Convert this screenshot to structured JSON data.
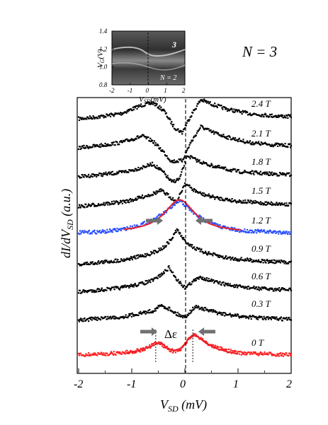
{
  "figure": {
    "ylabel": "dI/dV_SD (a.u.)",
    "ylabel_main": "dI/dV",
    "ylabel_sub": "SD",
    "ylabel_unit": " (a.u.)",
    "xlabel_main": "V",
    "xlabel_sub": "SD",
    "xlabel_unit": " (mV)",
    "state_label": "N = 3",
    "delta_label": "Δε"
  },
  "chart_data": [
    {
      "type": "scatter",
      "title": "",
      "xlabel": "V_SD (mV)",
      "ylabel": "dI/dV_SD (a.u.)",
      "xlim": [
        -2,
        2
      ],
      "xticks": [
        "-2",
        "-1",
        "0",
        "1",
        "2"
      ],
      "y_units": "arbitrary, traces offset vertically",
      "dashed_vertical_line_x": -0.05,
      "series": [
        {
          "name": "2.4 T",
          "color": "#000000",
          "baseline": 0.0,
          "x": [
            -2.0,
            -1.6,
            -1.2,
            -1.0,
            -0.8,
            -0.6,
            -0.4,
            -0.2,
            -0.05,
            0.1,
            0.3,
            0.5,
            0.8,
            1.2,
            1.6,
            2.0
          ],
          "y": [
            0.0,
            0.02,
            0.05,
            0.09,
            0.13,
            0.15,
            0.08,
            -0.08,
            -0.13,
            0.02,
            0.18,
            0.14,
            0.09,
            0.05,
            0.03,
            0.02
          ]
        },
        {
          "name": "2.1 T",
          "color": "#000000",
          "baseline": 0.0,
          "x": [
            -2.0,
            -1.6,
            -1.2,
            -1.0,
            -0.8,
            -0.6,
            -0.4,
            -0.25,
            -0.05,
            0.1,
            0.3,
            0.5,
            0.8,
            1.2,
            1.6,
            2.0
          ],
          "y": [
            0.0,
            0.02,
            0.05,
            0.08,
            0.11,
            0.06,
            -0.04,
            -0.13,
            -0.12,
            0.04,
            0.2,
            0.15,
            0.1,
            0.05,
            0.03,
            0.02
          ]
        },
        {
          "name": "1.8 T",
          "color": "#000000",
          "baseline": 0.0,
          "x": [
            -2.0,
            -1.6,
            -1.2,
            -1.0,
            -0.8,
            -0.6,
            -0.4,
            -0.25,
            -0.1,
            0.05,
            0.2,
            0.4,
            0.7,
            1.0,
            1.5,
            2.0
          ],
          "y": [
            0.0,
            0.02,
            0.04,
            0.06,
            0.09,
            0.12,
            0.04,
            -0.05,
            -0.02,
            0.2,
            0.16,
            0.12,
            0.08,
            0.05,
            0.03,
            0.02
          ]
        },
        {
          "name": "1.5 T",
          "color": "#000000",
          "baseline": 0.0,
          "x": [
            -2.0,
            -1.6,
            -1.2,
            -1.0,
            -0.8,
            -0.6,
            -0.45,
            -0.3,
            -0.15,
            0.0,
            0.15,
            0.3,
            0.6,
            1.0,
            1.5,
            2.0
          ],
          "y": [
            0.0,
            0.02,
            0.04,
            0.06,
            0.09,
            0.12,
            0.15,
            0.1,
            0.04,
            0.22,
            0.16,
            0.12,
            0.08,
            0.05,
            0.03,
            0.02
          ]
        },
        {
          "name": "1.2 T",
          "color": "#2b4fff",
          "baseline": 0.0,
          "x": [
            -2.0,
            -1.5,
            -1.2,
            -1.0,
            -0.8,
            -0.6,
            -0.4,
            -0.2,
            -0.1,
            0.05,
            0.2,
            0.4,
            0.6,
            0.8,
            1.0,
            1.5,
            2.0
          ],
          "y": [
            0.0,
            0.01,
            0.03,
            0.05,
            0.08,
            0.12,
            0.18,
            0.26,
            0.3,
            0.24,
            0.17,
            0.11,
            0.07,
            0.04,
            0.02,
            0.01,
            0.0
          ]
        },
        {
          "name": "0.9 T",
          "color": "#000000",
          "baseline": 0.0,
          "x": [
            -2.0,
            -1.6,
            -1.2,
            -1.0,
            -0.8,
            -0.6,
            -0.4,
            -0.25,
            -0.15,
            0.0,
            0.2,
            0.4,
            0.7,
            1.0,
            1.5,
            2.0
          ],
          "y": [
            0.0,
            0.02,
            0.04,
            0.06,
            0.08,
            0.11,
            0.16,
            0.24,
            0.33,
            0.22,
            0.15,
            0.11,
            0.07,
            0.05,
            0.03,
            0.02
          ]
        },
        {
          "name": "0.6 T",
          "color": "#000000",
          "baseline": 0.0,
          "x": [
            -2.0,
            -1.6,
            -1.2,
            -1.0,
            -0.8,
            -0.6,
            -0.4,
            -0.3,
            -0.15,
            0.0,
            0.15,
            0.3,
            0.6,
            1.0,
            1.5,
            2.0
          ],
          "y": [
            0.0,
            0.02,
            0.04,
            0.06,
            0.08,
            0.11,
            0.18,
            0.23,
            0.12,
            0.04,
            0.1,
            0.14,
            0.09,
            0.05,
            0.03,
            0.02
          ]
        },
        {
          "name": "0.3 T",
          "color": "#000000",
          "baseline": 0.0,
          "x": [
            -2.0,
            -1.6,
            -1.2,
            -1.0,
            -0.8,
            -0.6,
            -0.45,
            -0.3,
            -0.15,
            0.0,
            0.2,
            0.4,
            0.7,
            1.0,
            1.5,
            2.0
          ],
          "y": [
            0.0,
            0.02,
            0.03,
            0.05,
            0.07,
            0.09,
            0.14,
            0.11,
            0.06,
            0.03,
            0.13,
            0.1,
            0.06,
            0.04,
            0.02,
            0.01
          ]
        },
        {
          "name": "0 T",
          "color": "#ff2020",
          "baseline": 0.0,
          "x": [
            -2.0,
            -1.5,
            -1.2,
            -1.0,
            -0.8,
            -0.65,
            -0.5,
            -0.35,
            -0.2,
            -0.05,
            0.05,
            0.15,
            0.3,
            0.45,
            0.6,
            0.8,
            1.0,
            1.5,
            2.0
          ],
          "y": [
            0.0,
            0.01,
            0.02,
            0.03,
            0.05,
            0.08,
            0.12,
            0.07,
            0.03,
            0.06,
            0.14,
            0.19,
            0.16,
            0.1,
            0.07,
            0.04,
            0.02,
            0.01,
            0.0
          ]
        }
      ],
      "fits": [
        {
          "series": "1.2 T",
          "color": "#e8202a",
          "shape": "lorentzian",
          "center": -0.1,
          "amplitude": 0.31,
          "gamma": 0.35,
          "x_range": [
            -1.15,
            1.05
          ]
        },
        {
          "series": "0 T",
          "color": "#e8202a",
          "shape": "double-peak",
          "x": [
            -1.1,
            -0.9,
            -0.7,
            -0.55,
            -0.45,
            -0.35,
            -0.2,
            -0.05,
            0.05,
            0.15,
            0.25,
            0.4,
            0.6,
            0.8,
            1.0
          ],
          "y": [
            0.02,
            0.04,
            0.07,
            0.1,
            0.12,
            0.07,
            0.04,
            0.07,
            0.14,
            0.19,
            0.17,
            0.11,
            0.06,
            0.03,
            0.01
          ]
        }
      ],
      "markers": {
        "dotted_vertical_lines_x": [
          -0.55,
          0.15
        ],
        "delta_arrows": [
          "1.2 T",
          "0 T"
        ]
      }
    },
    {
      "type": "heatmap",
      "title": "",
      "xlabel": "V_SD (mV)",
      "ylabel": "V_G (V)",
      "xlim": [
        -2,
        2
      ],
      "ylim": [
        0.8,
        1.4
      ],
      "xticks": [
        "-2",
        "-1",
        "0",
        "1",
        "2"
      ],
      "yticks": [
        "0.8",
        "1.0",
        "1.2",
        "1.4"
      ],
      "colormap": "grayscale",
      "annotations": [
        "3",
        "N = 2"
      ]
    }
  ]
}
